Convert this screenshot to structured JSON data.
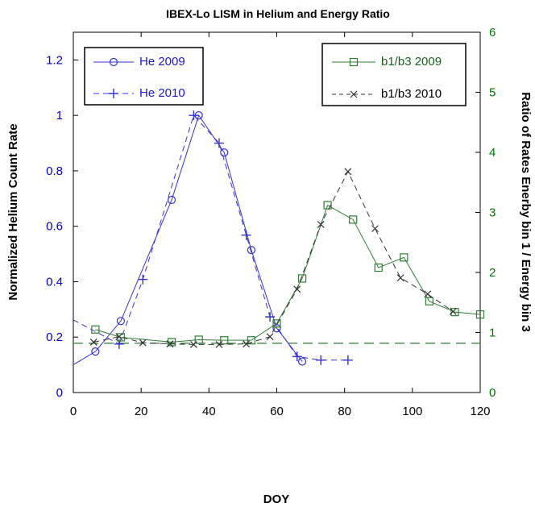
{
  "chart_data": {
    "type": "line",
    "title": "IBEX-Lo LISM in Helium and Energy Ratio",
    "xlabel": "DOY",
    "ylabel_left": "Normalized Helium Count Rate",
    "ylabel_right": "Ratio of Rates Enerby bin 1 / Energy bin 3",
    "xlim": [
      0,
      120
    ],
    "ylim_left": [
      0,
      1.3
    ],
    "ylim_right": [
      0,
      6
    ],
    "x_ticks": [
      0,
      20,
      40,
      60,
      80,
      100,
      120
    ],
    "y_left_ticks": [
      0,
      0.2,
      0.4,
      0.6,
      0.8,
      1,
      1.2
    ],
    "y_right_ticks": [
      0,
      1,
      2,
      3,
      4,
      5,
      6
    ],
    "grid": false,
    "colors": {
      "left_axis": "#0000cc",
      "right_axis": "#007700",
      "he": "#3333cc",
      "ratio": "#2e7d32",
      "ratio2010": "#333333"
    },
    "series": [
      {
        "name": "He 2009",
        "axis": "left",
        "marker": "circle",
        "line": "solid",
        "x": [
          6.5,
          14,
          29,
          37,
          44.5,
          52.5,
          60,
          67.5
        ],
        "y": [
          0.148,
          0.258,
          0.695,
          1.0,
          0.866,
          0.514,
          0.232,
          0.112
        ],
        "trend": {
          "x": [
            0,
            6.5
          ],
          "y": [
            0.1,
            0.148
          ]
        }
      },
      {
        "name": "He 2010",
        "axis": "left",
        "marker": "plus",
        "line": "dashed",
        "x": [
          13.5,
          20.5,
          35.5,
          43,
          51,
          58,
          66,
          73,
          81
        ],
        "y": [
          0.175,
          0.408,
          1.0,
          0.9,
          0.568,
          0.273,
          0.13,
          0.117,
          0.117
        ],
        "trend": {
          "x": [
            0,
            13.5
          ],
          "y": [
            0.262,
            0.175
          ]
        }
      },
      {
        "name": "b1/b3 2009",
        "axis": "right",
        "marker": "square",
        "line": "solid",
        "x": [
          6.5,
          14,
          29,
          37,
          44.5,
          52.5,
          60,
          67.5,
          75,
          82.5,
          90,
          97.5,
          105,
          112.5,
          120
        ],
        "y": [
          1.05,
          0.92,
          0.84,
          0.88,
          0.87,
          0.87,
          1.15,
          1.9,
          3.12,
          2.88,
          2.08,
          2.25,
          1.52,
          1.34,
          1.3
        ]
      },
      {
        "name": "b1/b3 2010",
        "axis": "right",
        "marker": "x",
        "line": "dashed",
        "x": [
          6,
          13.5,
          20.5,
          28.5,
          35.5,
          43,
          51,
          58,
          66,
          73,
          81,
          89,
          96.5,
          104.5,
          112
        ],
        "y": [
          0.84,
          0.93,
          0.83,
          0.81,
          0.8,
          0.8,
          0.81,
          0.93,
          1.72,
          2.8,
          3.68,
          2.73,
          1.91,
          1.64,
          1.35
        ]
      }
    ],
    "reference_line": {
      "axis": "right",
      "y": 0.82,
      "style": "dashed",
      "color": "#2e7d32"
    },
    "legends": [
      {
        "position": "top-left",
        "entries": [
          "He 2009",
          "He 2010"
        ]
      },
      {
        "position": "top-right",
        "entries": [
          "b1/b3 2009",
          "b1/b3 2010"
        ]
      }
    ]
  }
}
